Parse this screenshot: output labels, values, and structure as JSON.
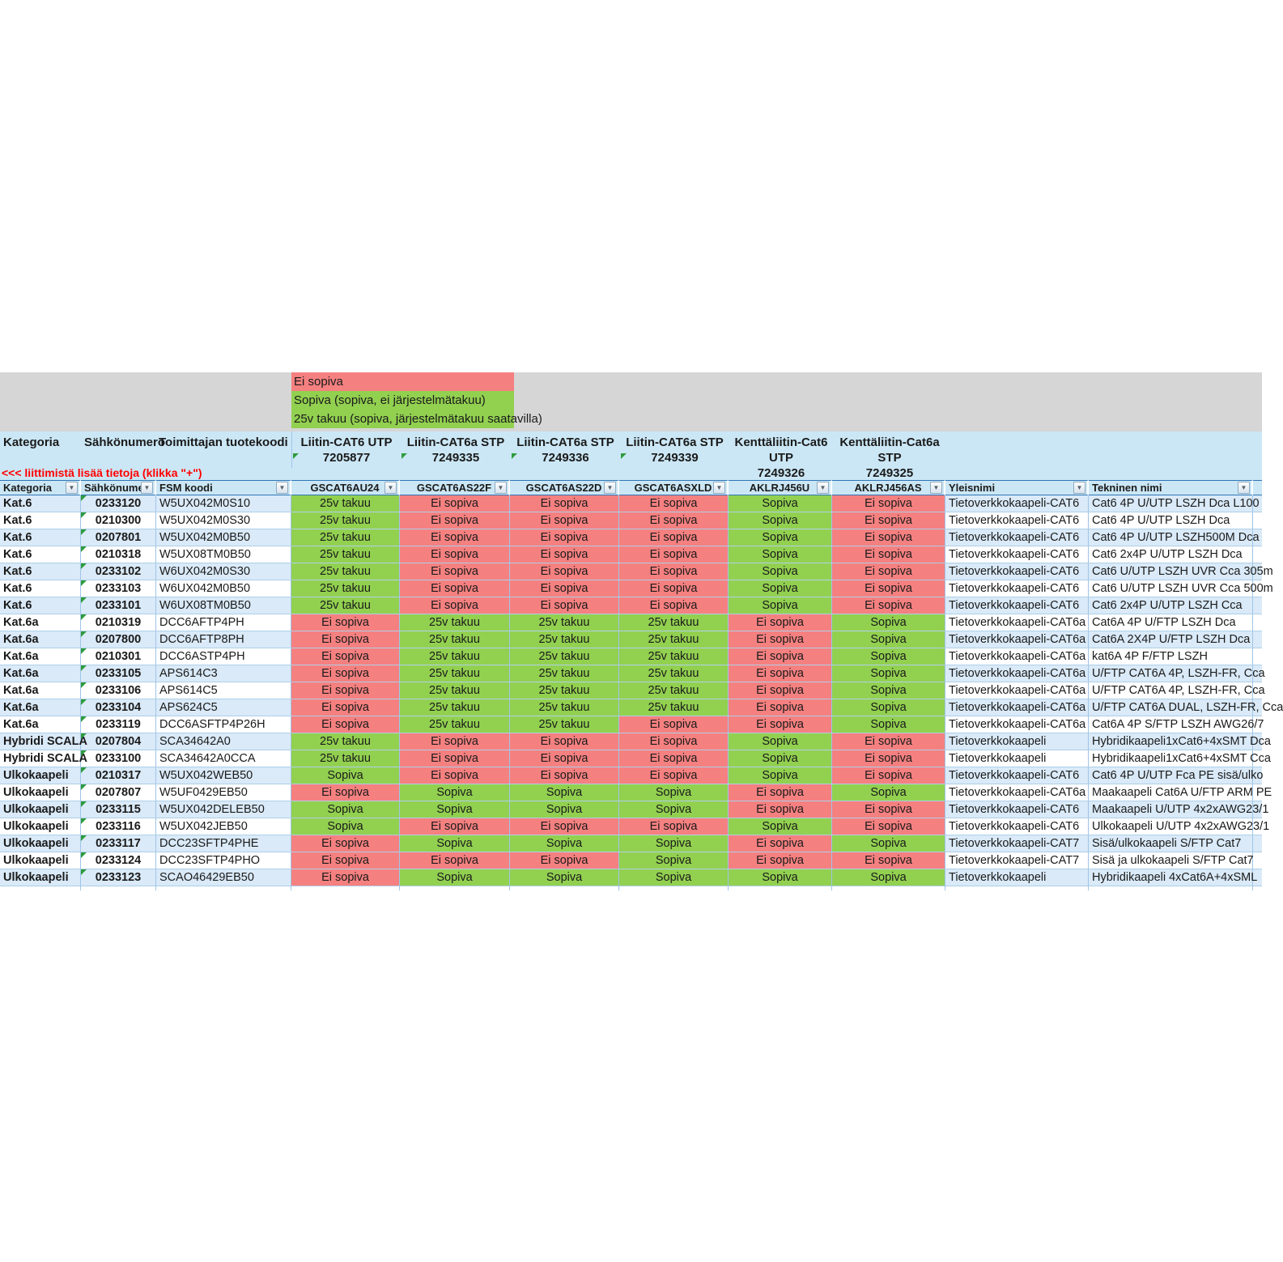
{
  "colors": {
    "status_red": "#F58080",
    "status_green": "#92D050",
    "header_blue": "#CBE7F5",
    "row_band_blue": "#DAEAF8",
    "gray_band": "#D6D6D6",
    "filter_border_blue": "#2E75B6",
    "gridline_blue": "#9FC5E8",
    "note_red": "#FF0000",
    "flag_green": "#2E9B3E"
  },
  "legend": [
    {
      "label": "Ei sopiva",
      "color": "#F58080"
    },
    {
      "label": "Sopiva (sopiva, ei järjestelmätakuu)",
      "color": "#92D050"
    },
    {
      "label": "25v takuu (sopiva, järjestelmätakuu saatavilla)",
      "color": "#92D050"
    }
  ],
  "header": {
    "left_columns": [
      "Kategoria",
      "Sähkönumero",
      "Toimittajan tuotekoodi"
    ],
    "connector_columns": [
      {
        "name": "Liitin-CAT6 UTP",
        "code": "7205877",
        "flag": true
      },
      {
        "name": "Liitin-CAT6a STP",
        "code": "7249335",
        "flag": true
      },
      {
        "name": "Liitin-CAT6a STP",
        "code": "7249336",
        "flag": true
      },
      {
        "name": "Liitin-CAT6a STP",
        "code": "7249339",
        "flag": true
      },
      {
        "name": "Kenttäliitin-Cat6 UTP",
        "code": "7249326",
        "flag": false
      },
      {
        "name": "Kenttäliitin-Cat6a STP",
        "code": "7249325",
        "flag": false
      }
    ],
    "note": "<<<  liittimistä lisää tietoja (klikka \"+\")"
  },
  "filter_row": [
    "Kategoria",
    "Sähkönume",
    "FSM koodi",
    "GSCAT6AU24",
    "GSCAT6AS22F",
    "GSCAT6AS22D",
    "GSCAT6ASXLD",
    "AKLRJ456U",
    "AKLRJ456AS",
    "Yleisnimi",
    "Tekninen nimi"
  ],
  "status_colors": {
    "Ei sopiva": "#F58080",
    "Sopiva": "#92D050",
    "25v takuu": "#92D050"
  },
  "rows": [
    {
      "kategoria": "Kat.6",
      "sahkonumero": "0233120",
      "fsm": "W5UX042M0S10",
      "statuses": [
        "25v takuu",
        "Ei sopiva",
        "Ei sopiva",
        "Ei sopiva",
        "Sopiva",
        "Ei sopiva"
      ],
      "yleisnimi": "Tietoverkkokaapeli-CAT6",
      "tekninen": "Cat6 4P U/UTP LSZH Dca L100"
    },
    {
      "kategoria": "Kat.6",
      "sahkonumero": "0210300",
      "fsm": "W5UX042M0S30",
      "statuses": [
        "25v takuu",
        "Ei sopiva",
        "Ei sopiva",
        "Ei sopiva",
        "Sopiva",
        "Ei sopiva"
      ],
      "yleisnimi": "Tietoverkkokaapeli-CAT6",
      "tekninen": "Cat6 4P U/UTP LSZH Dca"
    },
    {
      "kategoria": "Kat.6",
      "sahkonumero": "0207801",
      "fsm": "W5UX042M0B50",
      "statuses": [
        "25v takuu",
        "Ei sopiva",
        "Ei sopiva",
        "Ei sopiva",
        "Sopiva",
        "Ei sopiva"
      ],
      "yleisnimi": "Tietoverkkokaapeli-CAT6",
      "tekninen": "Cat6 4P U/UTP LSZH500M Dca"
    },
    {
      "kategoria": "Kat.6",
      "sahkonumero": "0210318",
      "fsm": "W5UX08TM0B50",
      "statuses": [
        "25v takuu",
        "Ei sopiva",
        "Ei sopiva",
        "Ei sopiva",
        "Sopiva",
        "Ei sopiva"
      ],
      "yleisnimi": "Tietoverkkokaapeli-CAT6",
      "tekninen": "Cat6 2x4P U/UTP LSZH Dca"
    },
    {
      "kategoria": "Kat.6",
      "sahkonumero": "0233102",
      "fsm": "W6UX042M0S30",
      "statuses": [
        "25v takuu",
        "Ei sopiva",
        "Ei sopiva",
        "Ei sopiva",
        "Sopiva",
        "Ei sopiva"
      ],
      "yleisnimi": "Tietoverkkokaapeli-CAT6",
      "tekninen": "Cat6 U/UTP LSZH UVR Cca 305m"
    },
    {
      "kategoria": "Kat.6",
      "sahkonumero": "0233103",
      "fsm": "W6UX042M0B50",
      "statuses": [
        "25v takuu",
        "Ei sopiva",
        "Ei sopiva",
        "Ei sopiva",
        "Sopiva",
        "Ei sopiva"
      ],
      "yleisnimi": "Tietoverkkokaapeli-CAT6",
      "tekninen": "Cat6 U/UTP LSZH UVR Cca 500m"
    },
    {
      "kategoria": "Kat.6",
      "sahkonumero": "0233101",
      "fsm": "W6UX08TM0B50",
      "statuses": [
        "25v takuu",
        "Ei sopiva",
        "Ei sopiva",
        "Ei sopiva",
        "Sopiva",
        "Ei sopiva"
      ],
      "yleisnimi": "Tietoverkkokaapeli-CAT6",
      "tekninen": "Cat6 2x4P U/UTP LSZH Cca"
    },
    {
      "kategoria": "Kat.6a",
      "sahkonumero": "0210319",
      "fsm": "DCC6AFTP4PH",
      "statuses": [
        "Ei sopiva",
        "25v takuu",
        "25v takuu",
        "25v takuu",
        "Ei sopiva",
        "Sopiva"
      ],
      "yleisnimi": "Tietoverkkokaapeli-CAT6a",
      "tekninen": "Cat6A 4P U/FTP LSZH Dca"
    },
    {
      "kategoria": "Kat.6a",
      "sahkonumero": "0207800",
      "fsm": "DCC6AFTP8PH",
      "statuses": [
        "Ei sopiva",
        "25v takuu",
        "25v takuu",
        "25v takuu",
        "Ei sopiva",
        "Sopiva"
      ],
      "yleisnimi": "Tietoverkkokaapeli-CAT6a",
      "tekninen": "Cat6A 2X4P U/FTP LSZH Dca"
    },
    {
      "kategoria": "Kat.6a",
      "sahkonumero": "0210301",
      "fsm": "DCC6ASTP4PH",
      "statuses": [
        "Ei sopiva",
        "25v takuu",
        "25v takuu",
        "25v takuu",
        "Ei sopiva",
        "Sopiva"
      ],
      "yleisnimi": "Tietoverkkokaapeli-CAT6a",
      "tekninen": "kat6A 4P F/FTP LSZH"
    },
    {
      "kategoria": "Kat.6a",
      "sahkonumero": "0233105",
      "fsm": "APS614C3",
      "statuses": [
        "Ei sopiva",
        "25v takuu",
        "25v takuu",
        "25v takuu",
        "Ei sopiva",
        "Sopiva"
      ],
      "yleisnimi": "Tietoverkkokaapeli-CAT6a",
      "tekninen": "U/FTP CAT6A 4P, LSZH-FR, Cca"
    },
    {
      "kategoria": "Kat.6a",
      "sahkonumero": "0233106",
      "fsm": "APS614C5",
      "statuses": [
        "Ei sopiva",
        "25v takuu",
        "25v takuu",
        "25v takuu",
        "Ei sopiva",
        "Sopiva"
      ],
      "yleisnimi": "Tietoverkkokaapeli-CAT6a",
      "tekninen": "U/FTP CAT6A 4P, LSZH-FR, Cca"
    },
    {
      "kategoria": "Kat.6a",
      "sahkonumero": "0233104",
      "fsm": "APS624C5",
      "statuses": [
        "Ei sopiva",
        "25v takuu",
        "25v takuu",
        "25v takuu",
        "Ei sopiva",
        "Sopiva"
      ],
      "yleisnimi": "Tietoverkkokaapeli-CAT6a",
      "tekninen": "U/FTP CAT6A DUAL, LSZH-FR, Cca"
    },
    {
      "kategoria": "Kat.6a",
      "sahkonumero": "0233119",
      "fsm": "DCC6ASFTP4P26H",
      "statuses": [
        "Ei sopiva",
        "25v takuu",
        "25v takuu",
        "Ei sopiva",
        "Ei sopiva",
        "Sopiva"
      ],
      "yleisnimi": "Tietoverkkokaapeli-CAT6a",
      "tekninen": "Cat6A 4P S/FTP LSZH AWG26/7"
    },
    {
      "kategoria": "Hybridi SCALA",
      "sahkonumero": "0207804",
      "fsm": "SCA34642A0",
      "statuses": [
        "25v takuu",
        "Ei sopiva",
        "Ei sopiva",
        "Ei sopiva",
        "Sopiva",
        "Ei sopiva"
      ],
      "yleisnimi": "Tietoverkkokaapeli",
      "tekninen": "Hybridikaapeli1xCat6+4xSMT Dca"
    },
    {
      "kategoria": "Hybridi SCALA",
      "sahkonumero": "0233100",
      "fsm": "SCA34642A0CCA",
      "statuses": [
        "25v takuu",
        "Ei sopiva",
        "Ei sopiva",
        "Ei sopiva",
        "Sopiva",
        "Ei sopiva"
      ],
      "yleisnimi": "Tietoverkkokaapeli",
      "tekninen": "Hybridikaapeli1xCat6+4xSMT Cca"
    },
    {
      "kategoria": "Ulkokaapeli",
      "sahkonumero": "0210317",
      "fsm": "W5UX042WEB50",
      "statuses": [
        "Sopiva",
        "Ei sopiva",
        "Ei sopiva",
        "Ei sopiva",
        "Sopiva",
        "Ei sopiva"
      ],
      "yleisnimi": "Tietoverkkokaapeli-CAT6",
      "tekninen": "Cat6 4P U/UTP Fca PE sisä/ulko"
    },
    {
      "kategoria": "Ulkokaapeli",
      "sahkonumero": "0207807",
      "fsm": "W5UF0429EB50",
      "statuses": [
        "Ei sopiva",
        "Sopiva",
        "Sopiva",
        "Sopiva",
        "Ei sopiva",
        "Sopiva"
      ],
      "yleisnimi": "Tietoverkkokaapeli-CAT6a",
      "tekninen": "Maakaapeli Cat6A U/FTP ARM PE"
    },
    {
      "kategoria": "Ulkokaapeli",
      "sahkonumero": "0233115",
      "fsm": "W5UX042DELEB50",
      "statuses": [
        "Sopiva",
        "Sopiva",
        "Sopiva",
        "Sopiva",
        "Ei sopiva",
        "Ei sopiva"
      ],
      "yleisnimi": "Tietoverkkokaapeli-CAT6",
      "tekninen": "Maakaapeli U/UTP 4x2xAWG23/1"
    },
    {
      "kategoria": "Ulkokaapeli",
      "sahkonumero": "0233116",
      "fsm": "W5UX042JEB50",
      "statuses": [
        "Sopiva",
        "Ei sopiva",
        "Ei sopiva",
        "Ei sopiva",
        "Sopiva",
        "Ei sopiva"
      ],
      "yleisnimi": "Tietoverkkokaapeli-CAT6",
      "tekninen": "Ulkokaapeli U/UTP 4x2xAWG23/1"
    },
    {
      "kategoria": "Ulkokaapeli",
      "sahkonumero": "0233117",
      "fsm": "DCC23SFTP4PHE",
      "statuses": [
        "Ei sopiva",
        "Sopiva",
        "Sopiva",
        "Sopiva",
        "Ei sopiva",
        "Sopiva"
      ],
      "yleisnimi": "Tietoverkkokaapeli-CAT7",
      "tekninen": "Sisä/ulkokaapeli S/FTP Cat7"
    },
    {
      "kategoria": "Ulkokaapeli",
      "sahkonumero": "0233124",
      "fsm": "DCC23SFTP4PHO",
      "statuses": [
        "Ei sopiva",
        "Ei sopiva",
        "Ei sopiva",
        "Sopiva",
        "Ei sopiva",
        "Ei sopiva"
      ],
      "yleisnimi": "Tietoverkkokaapeli-CAT7",
      "tekninen": "Sisä ja ulkokaapeli S/FTP Cat7"
    },
    {
      "kategoria": "Ulkokaapeli",
      "sahkonumero": "0233123",
      "fsm": "SCAO46429EB50",
      "statuses": [
        "Ei sopiva",
        "Sopiva",
        "Sopiva",
        "Sopiva",
        "Sopiva",
        "Sopiva"
      ],
      "yleisnimi": "Tietoverkkokaapeli",
      "tekninen": "Hybridikaapeli 4xCat6A+4xSML"
    }
  ]
}
